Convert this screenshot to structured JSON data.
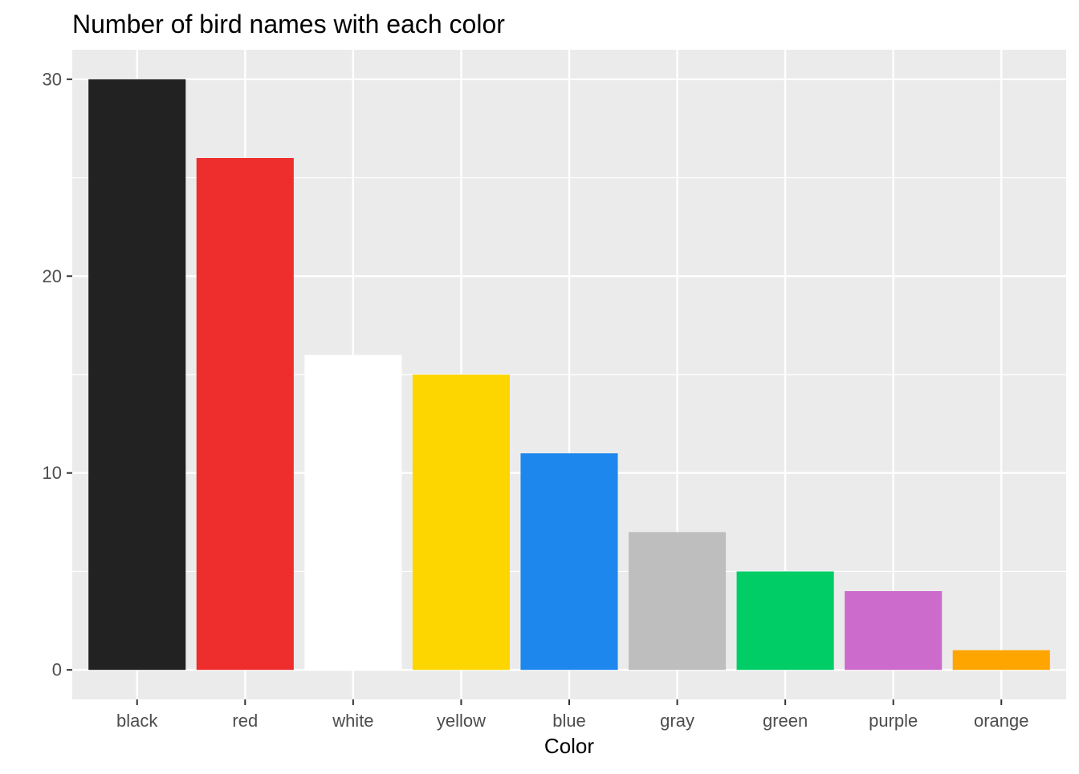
{
  "chart_data": {
    "type": "bar",
    "title": "Number of bird names with each color",
    "xlabel": "Color",
    "ylabel": "",
    "categories": [
      "black",
      "red",
      "white",
      "yellow",
      "blue",
      "gray",
      "green",
      "purple",
      "orange"
    ],
    "values": [
      30,
      26,
      16,
      15,
      11,
      7,
      5,
      4,
      1
    ],
    "bar_colors": [
      "#222222",
      "#ee2d2d",
      "#ffffff",
      "#fdd600",
      "#1e87ed",
      "#bebebe",
      "#00cd66",
      "#cc6bcb",
      "#ffa500"
    ],
    "ylim": [
      -1.5,
      31.5
    ],
    "yticks": [
      0,
      10,
      20,
      30
    ],
    "y_minor_ticks": [
      5,
      15,
      25
    ],
    "grid": true,
    "legend": "none",
    "panel_background": "#ebebeb",
    "grid_color": "#ffffff"
  }
}
